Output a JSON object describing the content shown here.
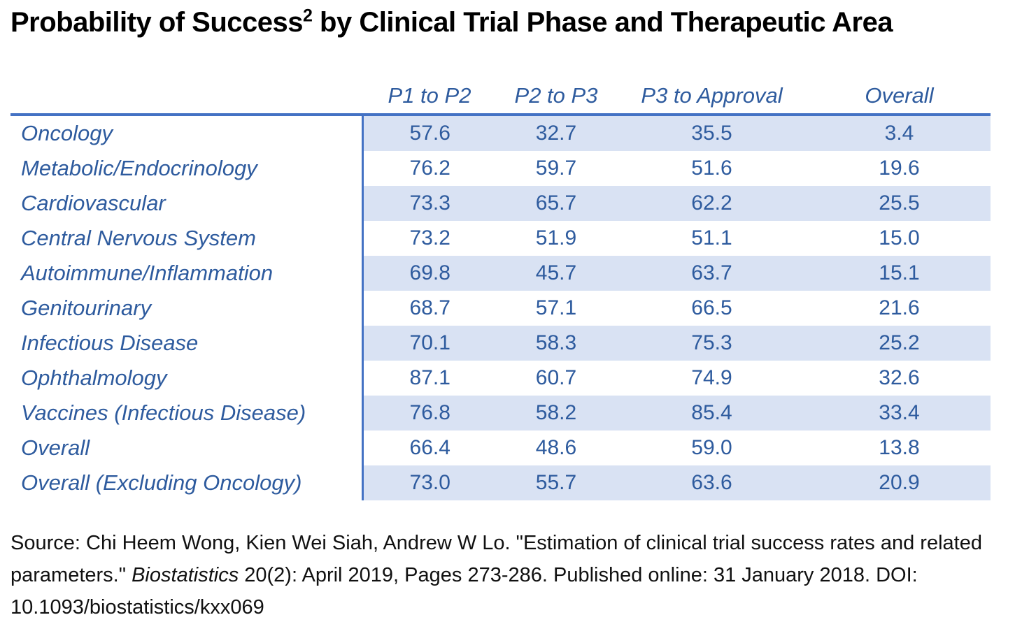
{
  "title": {
    "text_before_sup": "Probability of Success",
    "sup": "2",
    "text_after_sup": " by Clinical Trial Phase and Therapeutic Area"
  },
  "chart_data": {
    "type": "table",
    "title": "Probability of Success2 by Clinical Trial Phase and Therapeutic Area",
    "columns": [
      "P1 to P2",
      "P2 to P3",
      "P3 to Approval",
      "Overall"
    ],
    "rows": [
      {
        "label": "Oncology",
        "values": [
          "57.6",
          "32.7",
          "35.5",
          "3.4"
        ]
      },
      {
        "label": "Metabolic/Endocrinology",
        "values": [
          "76.2",
          "59.7",
          "51.6",
          "19.6"
        ]
      },
      {
        "label": "Cardiovascular",
        "values": [
          "73.3",
          "65.7",
          "62.2",
          "25.5"
        ]
      },
      {
        "label": "Central Nervous System",
        "values": [
          "73.2",
          "51.9",
          "51.1",
          "15.0"
        ]
      },
      {
        "label": "Autoimmune/Inflammation",
        "values": [
          "69.8",
          "45.7",
          "63.7",
          "15.1"
        ]
      },
      {
        "label": "Genitourinary",
        "values": [
          "68.7",
          "57.1",
          "66.5",
          "21.6"
        ]
      },
      {
        "label": "Infectious Disease",
        "values": [
          "70.1",
          "58.3",
          "75.3",
          "25.2"
        ]
      },
      {
        "label": "Ophthalmology",
        "values": [
          "87.1",
          "60.7",
          "74.9",
          "32.6"
        ]
      },
      {
        "label": "Vaccines (Infectious Disease)",
        "values": [
          "76.8",
          "58.2",
          "85.4",
          "33.4"
        ]
      },
      {
        "label": "Overall",
        "values": [
          "66.4",
          "48.6",
          "59.0",
          "13.8"
        ]
      },
      {
        "label": "Overall (Excluding Oncology)",
        "values": [
          "73.0",
          "55.7",
          "63.6",
          "20.9"
        ]
      }
    ],
    "layout": {
      "shaded_row_indices": [
        0,
        2,
        4,
        6,
        8,
        10
      ],
      "grid": "header underline + label divider only"
    }
  },
  "source": {
    "line1": "Source: Chi Heem Wong, Kien Wei Siah, Andrew W Lo. \"Estimation of clinical trial success rates and related",
    "line2_pre": "parameters.\" ",
    "line2_italic": "Biostatistics",
    "line2_post": " 20(2): April 2019, Pages 273-286. Published online: 31 January 2018. DOI:",
    "line3": "10.1093/biostatistics/kxx069"
  },
  "colors": {
    "accent_line": "#4472C4",
    "row_shading": "#D9E2F3",
    "text_blue": "#2E5B9E",
    "title_black": "#000000"
  }
}
